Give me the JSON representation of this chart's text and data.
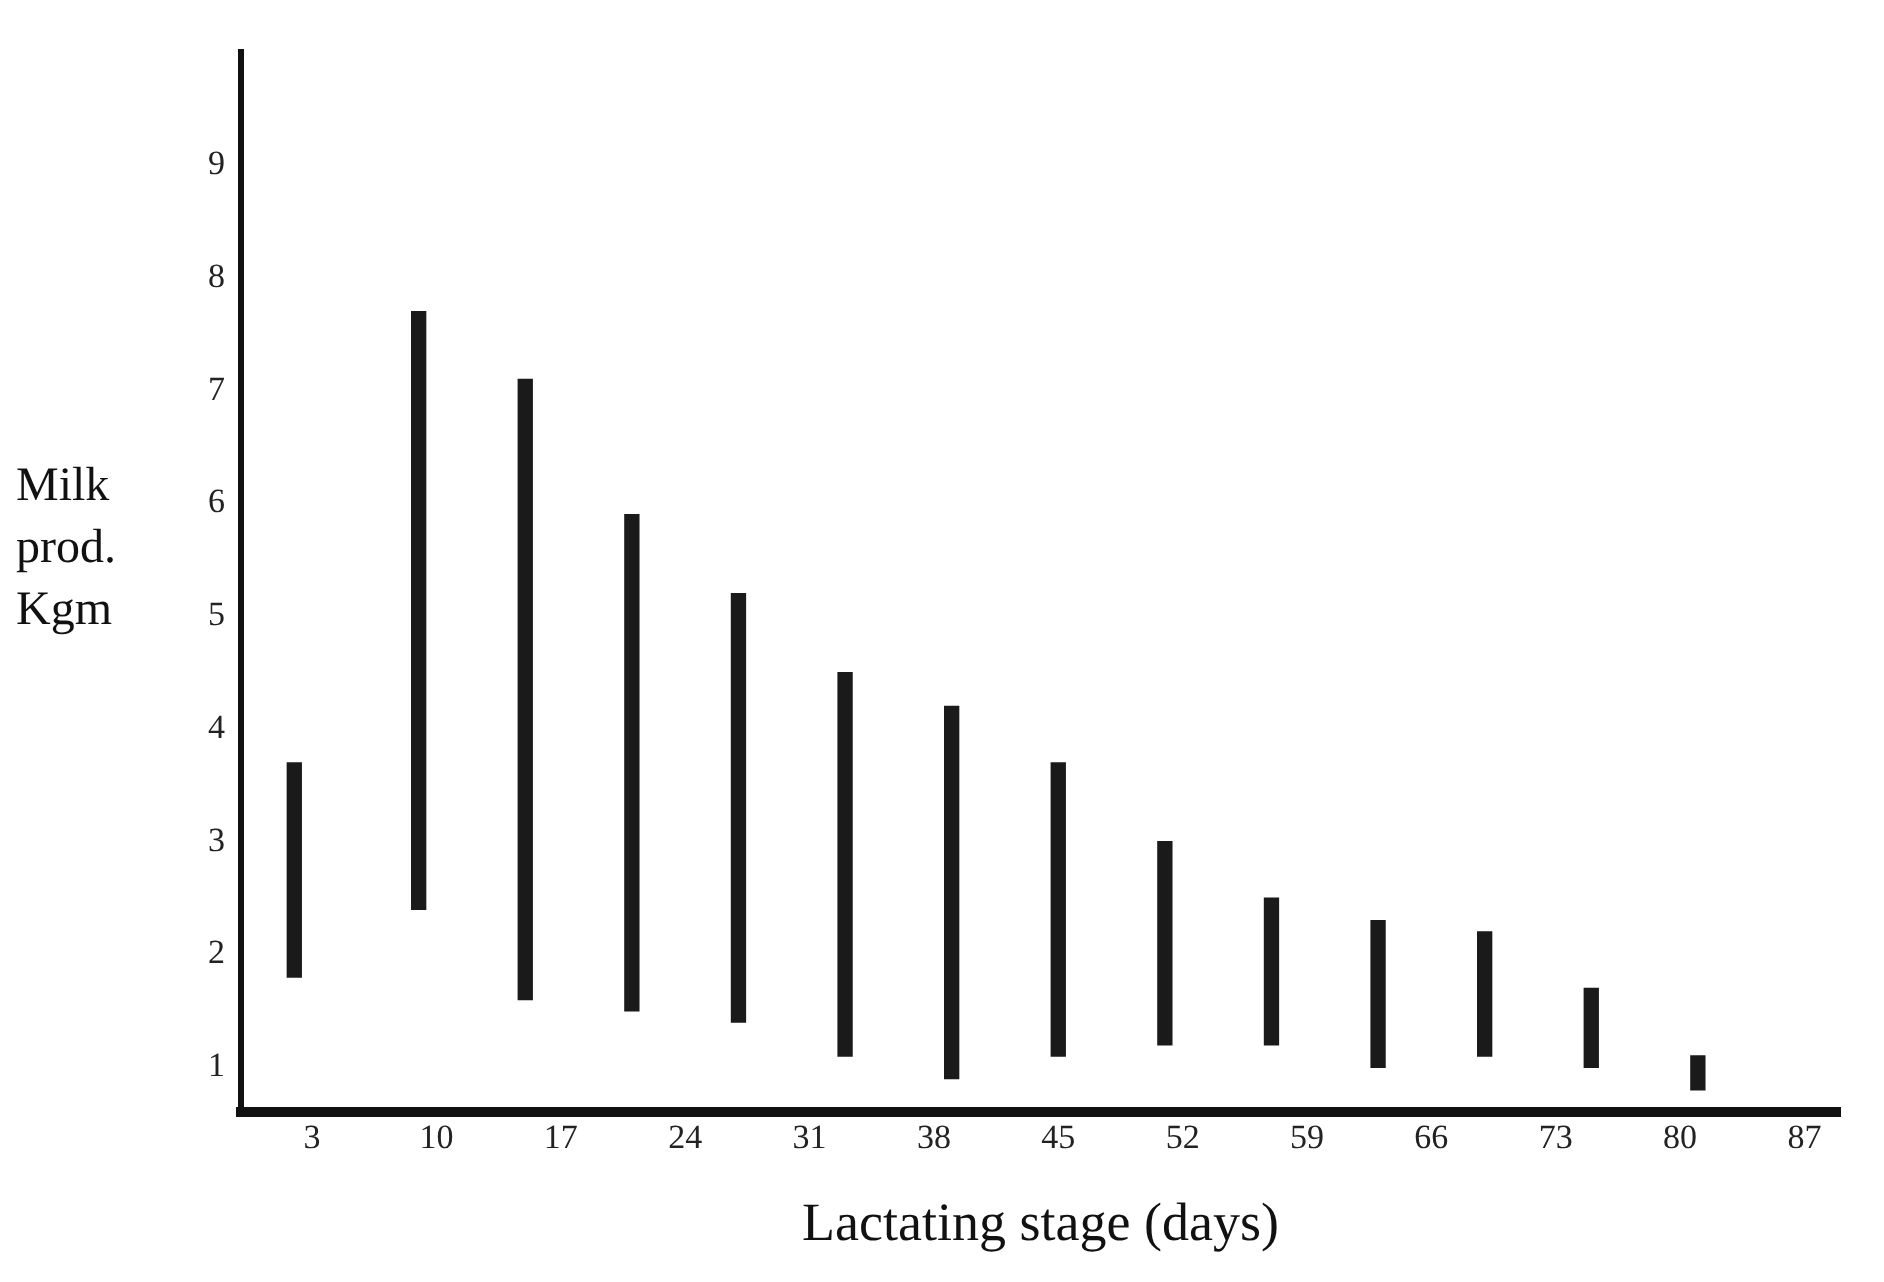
{
  "chart_data": {
    "type": "bar",
    "xlabel": "Lactating stage (days)",
    "ylabel": "Milk prod. Kgm",
    "x": [
      2,
      9,
      15,
      21,
      27,
      33,
      39,
      45,
      51,
      57,
      63,
      69,
      75,
      81
    ],
    "base": [
      1.8,
      2.4,
      1.6,
      1.5,
      1.4,
      1.1,
      0.9,
      1.1,
      1.2,
      1.2,
      1.0,
      1.1,
      1.0,
      0.8
    ],
    "values": [
      1.9,
      5.3,
      5.5,
      4.4,
      3.8,
      3.4,
      3.3,
      2.6,
      1.8,
      1.3,
      1.3,
      1.1,
      0.7,
      0.3
    ],
    "color": "#1a1a1a",
    "xlim": [
      -1,
      89
    ],
    "xticks": [
      3,
      10,
      17,
      24,
      31,
      38,
      45,
      52,
      59,
      66,
      73,
      80,
      87
    ],
    "ylim": [
      0.6,
      10
    ],
    "yticks": [
      1,
      2,
      3,
      4,
      5,
      6,
      7,
      8,
      9
    ],
    "grid": false,
    "legend": false
  }
}
